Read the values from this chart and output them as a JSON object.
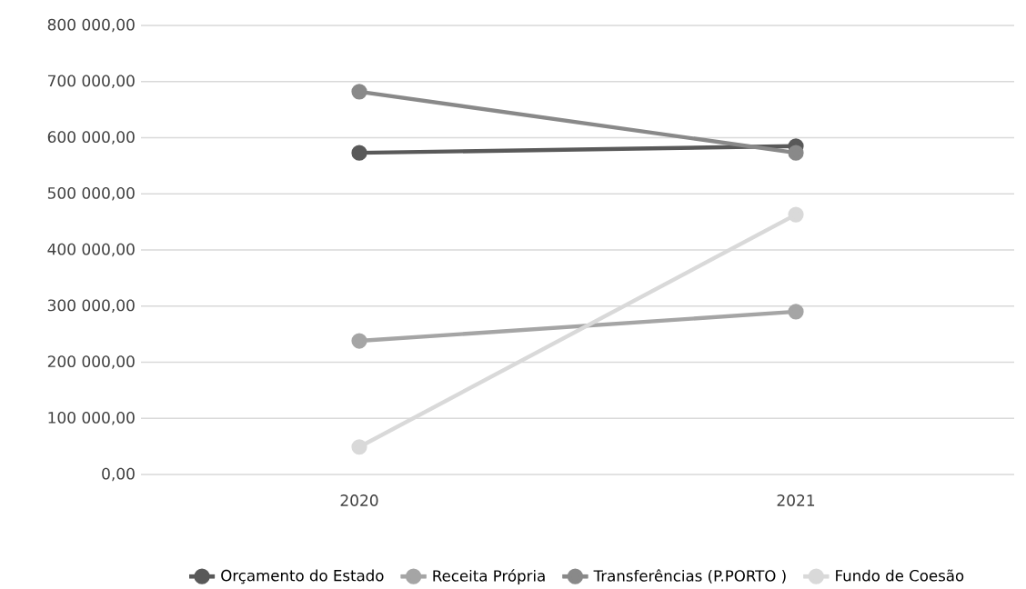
{
  "chart_data": {
    "type": "line",
    "categories": [
      "2020",
      "2021"
    ],
    "series": [
      {
        "name": "Orçamento do Estado",
        "color": "#595959",
        "values": [
          573000,
          585000
        ]
      },
      {
        "name": "Receita Própria",
        "color": "#a5a5a5",
        "values": [
          238000,
          290000
        ]
      },
      {
        "name": "Transferências (P.PORTO )",
        "color": "#898989",
        "values": [
          682000,
          573000
        ]
      },
      {
        "name": "Fundo de Coesão",
        "color": "#d9d9d9",
        "values": [
          49000,
          463000
        ]
      }
    ],
    "ylim": [
      0,
      800000
    ],
    "yticks": [
      {
        "value": 0,
        "label": "0,00"
      },
      {
        "value": 100000,
        "label": "100 000,00"
      },
      {
        "value": 200000,
        "label": "200 000,00"
      },
      {
        "value": 300000,
        "label": "300 000,00"
      },
      {
        "value": 400000,
        "label": "400 000,00"
      },
      {
        "value": 500000,
        "label": "500 000,00"
      },
      {
        "value": 600000,
        "label": "600 000,00"
      },
      {
        "value": 700000,
        "label": "700 000,00"
      },
      {
        "value": 800000,
        "label": "800 000,00"
      }
    ],
    "grid": "y",
    "legend": "bottom",
    "marker": "circle",
    "line_style": "solid"
  }
}
